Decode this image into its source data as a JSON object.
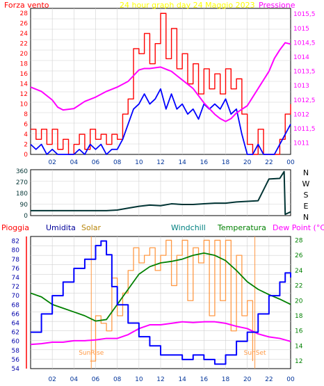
{
  "panel_wind": {
    "left_label": "Forza vento",
    "title": "24 hour graph day   24 Maggio 2023",
    "right_label": "Pressione"
  },
  "panel_direction": {
    "compass_labels": [
      "N",
      "W",
      "S",
      "E",
      "N"
    ]
  },
  "panel_climate": {
    "header": [
      "Pioggia",
      "Umidita",
      "Solar",
      "Windchill",
      "Temperatura",
      "Dew Point (°C)"
    ],
    "sunrise": "SunRise",
    "sunset": "SunSet"
  },
  "colors": {
    "wind_gust": "#ff0000",
    "wind_avg": "#0000ff",
    "pressure": "#ff00ff",
    "direction": "#003333",
    "humidity": "#0000ff",
    "solar": "#ff9944",
    "temperature": "#008000",
    "dewpoint": "#ff00ff",
    "rain": "#ff0000",
    "title": "#ffff00",
    "axis_left": "#ff0000",
    "axis_right": "#ff00ff"
  },
  "chart_data": [
    {
      "type": "line",
      "title": "24 hour graph day   24 Maggio 2023",
      "xlabel": "",
      "x_ticks": [
        "02",
        "04",
        "06",
        "08",
        "10",
        "12",
        "14",
        "16",
        "18",
        "20",
        "22",
        "00"
      ],
      "ylabel": "Forza vento",
      "y_ticks": [
        0,
        2,
        4,
        6,
        8,
        10,
        12,
        14,
        16,
        18,
        20,
        22,
        24,
        26,
        28
      ],
      "ylim": [
        0,
        29
      ],
      "y2label": "Pressione",
      "y2_ticks": [
        "1011",
        "1011,5",
        "1012",
        "1012,5",
        "1013",
        "1013,5",
        "1014",
        "1014,5",
        "1015",
        "1015,5"
      ],
      "y2lim": [
        1010.6,
        1015.7
      ],
      "series": [
        {
          "name": "gust",
          "axis": "left",
          "x": [
            0,
            0.5,
            1,
            1.5,
            2,
            2.5,
            3,
            3.5,
            4,
            4.5,
            5,
            5.5,
            6,
            6.5,
            7,
            7.5,
            8,
            8.5,
            9,
            9.5,
            10,
            10.5,
            11,
            11.5,
            12,
            12.5,
            13,
            13.5,
            14,
            14.5,
            15,
            15.5,
            16,
            16.5,
            17,
            17.5,
            18,
            18.5,
            19,
            19.5,
            20,
            20.5,
            21,
            21.5,
            22,
            22.5,
            23,
            23.5,
            24
          ],
          "values": [
            5,
            3,
            5,
            2,
            5,
            1,
            3,
            0,
            2,
            4,
            1,
            5,
            3,
            4,
            2,
            4,
            3,
            8,
            11,
            21,
            20,
            24,
            18,
            22,
            28,
            19,
            25,
            17,
            20,
            14,
            18,
            12,
            17,
            13,
            16,
            12,
            17,
            13,
            15,
            8,
            2,
            0,
            5,
            0,
            0,
            0,
            3,
            8,
            10
          ]
        },
        {
          "name": "average",
          "axis": "left",
          "x": [
            0,
            0.5,
            1,
            1.5,
            2,
            2.5,
            3,
            3.5,
            4,
            4.5,
            5,
            5.5,
            6,
            6.5,
            7,
            7.5,
            8,
            8.5,
            9,
            9.5,
            10,
            10.5,
            11,
            11.5,
            12,
            12.5,
            13,
            13.5,
            14,
            14.5,
            15,
            15.5,
            16,
            16.5,
            17,
            17.5,
            18,
            18.5,
            19,
            19.5,
            20,
            20.5,
            21,
            21.5,
            22,
            22.5,
            23,
            23.5,
            24
          ],
          "values": [
            2,
            1,
            2,
            0,
            1,
            0,
            0,
            0,
            0,
            1,
            0,
            2,
            1,
            2,
            0,
            1,
            1,
            3,
            6,
            9,
            10,
            12,
            10,
            11,
            13,
            9,
            12,
            9,
            10,
            8,
            9,
            7,
            10,
            9,
            10,
            9,
            11,
            8,
            9,
            4,
            0,
            0,
            2,
            0,
            0,
            0,
            2,
            4,
            6
          ]
        },
        {
          "name": "pressure",
          "axis": "right",
          "x": [
            0,
            1,
            2,
            2.5,
            3,
            4,
            5,
            6,
            7,
            8,
            9,
            9.5,
            10,
            10.5,
            11,
            12,
            13,
            14,
            15,
            16,
            17,
            17.5,
            18,
            18.5,
            19,
            20,
            21,
            22,
            22.5,
            23,
            23.5,
            24
          ],
          "values": [
            1012.95,
            1012.8,
            1012.5,
            1012.25,
            1012.15,
            1012.2,
            1012.45,
            1012.6,
            1012.8,
            1012.95,
            1013.15,
            1013.35,
            1013.55,
            1013.6,
            1013.6,
            1013.65,
            1013.5,
            1013.2,
            1012.9,
            1012.4,
            1012.0,
            1011.85,
            1011.75,
            1011.85,
            1012.05,
            1012.3,
            1012.9,
            1013.5,
            1013.95,
            1014.25,
            1014.5,
            1014.45
          ]
        }
      ]
    },
    {
      "type": "line",
      "title": "",
      "x_ticks": [
        "02",
        "04",
        "06",
        "08",
        "10",
        "12",
        "14",
        "16",
        "18",
        "20",
        "22",
        "00"
      ],
      "y_ticks": [
        0,
        90,
        180,
        270,
        360
      ],
      "ylim": [
        0,
        370
      ],
      "series": [
        {
          "name": "direction",
          "x": [
            0,
            2,
            4,
            6,
            7,
            8,
            9,
            10,
            11,
            12,
            13,
            14,
            15,
            16,
            17,
            18,
            19,
            20,
            21,
            22,
            23,
            23.4,
            23.5,
            24
          ],
          "values": [
            40,
            40,
            40,
            40,
            40,
            45,
            60,
            75,
            85,
            80,
            95,
            90,
            90,
            95,
            100,
            100,
            110,
            115,
            120,
            295,
            300,
            355,
            10,
            30
          ]
        }
      ]
    },
    {
      "type": "line",
      "title": "",
      "x_ticks": [
        "02",
        "04",
        "06",
        "08",
        "10",
        "12",
        "14",
        "16",
        "18",
        "20",
        "22",
        "00"
      ],
      "y_ticks": [
        54,
        56,
        58,
        60,
        62,
        64,
        66,
        68,
        70,
        72,
        74,
        76,
        78,
        80,
        82
      ],
      "ylim": [
        54,
        83
      ],
      "y2_ticks": [
        12,
        14,
        16,
        18,
        20,
        22,
        24,
        26,
        28
      ],
      "y2lim": [
        11,
        28.5
      ],
      "series": [
        {
          "name": "Umidita",
          "axis": "left",
          "x": [
            0,
            1,
            2,
            3,
            4,
            5,
            6,
            6.5,
            7,
            7.5,
            8,
            9,
            10,
            11,
            12,
            13,
            14,
            15,
            16,
            17,
            18,
            19,
            20,
            21,
            22,
            23,
            23.5,
            24
          ],
          "values": [
            62,
            66,
            70,
            73,
            76,
            78,
            81,
            82,
            79,
            72,
            68,
            64,
            61,
            59,
            57,
            57,
            56,
            57,
            56,
            55,
            57,
            60,
            62,
            66,
            70,
            73,
            75,
            74
          ]
        },
        {
          "name": "Solar",
          "axis": "right",
          "x": [
            5.5,
            6,
            6.5,
            7,
            7.5,
            8,
            8.5,
            9,
            9.5,
            10,
            10.5,
            11,
            11.5,
            12,
            12.5,
            13,
            13.5,
            14,
            14.5,
            15,
            15.5,
            16,
            16.5,
            17,
            17.5,
            18,
            18.5,
            19,
            19.5,
            20,
            20.5
          ],
          "values": [
            12,
            18,
            17,
            16,
            23,
            18,
            21,
            24,
            27,
            25,
            26,
            27,
            24,
            26,
            28,
            22,
            26,
            28,
            20,
            27,
            25,
            28,
            18,
            28,
            20,
            28,
            16,
            26,
            18,
            20,
            12
          ]
        },
        {
          "name": "Temperatura",
          "axis": "right",
          "x": [
            0,
            1,
            2,
            3,
            4,
            5,
            6,
            7,
            8,
            9,
            10,
            11,
            12,
            13,
            14,
            15,
            16,
            17,
            18,
            19,
            20,
            21,
            22,
            23,
            24
          ],
          "values": [
            21,
            20.5,
            19.5,
            19,
            18.5,
            18,
            17.3,
            17.5,
            19.5,
            21.5,
            23.5,
            24.5,
            25,
            25.2,
            25.5,
            26,
            26.3,
            26,
            25.3,
            24,
            22.5,
            21.5,
            20.8,
            20.2,
            19.5
          ]
        },
        {
          "name": "Dew Point",
          "axis": "right",
          "x": [
            0,
            1,
            2,
            3,
            4,
            5,
            6,
            7,
            8,
            9,
            10,
            11,
            12,
            13,
            14,
            15,
            16,
            17,
            18,
            19,
            20,
            21,
            22,
            23,
            24
          ],
          "values": [
            14.2,
            14.3,
            14.5,
            14.5,
            14.7,
            14.7,
            14.8,
            15,
            15,
            15.5,
            16.3,
            16.8,
            16.8,
            17,
            17.2,
            17.1,
            17.2,
            17.2,
            17,
            16.6,
            16.3,
            15.6,
            15.2,
            15,
            14.6
          ]
        }
      ]
    }
  ]
}
